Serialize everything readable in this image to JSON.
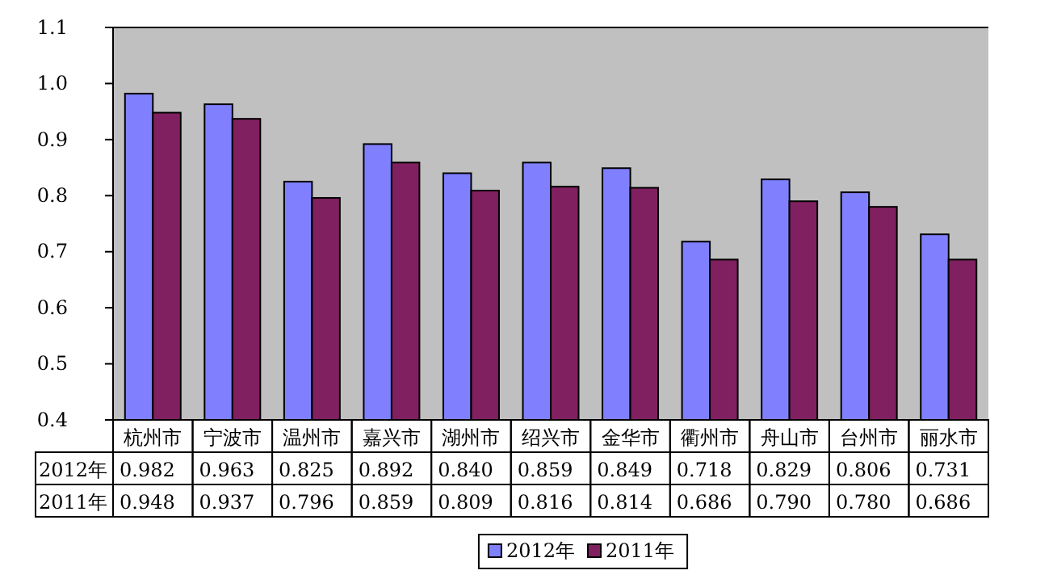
{
  "chart_data": {
    "type": "bar",
    "categories": [
      "杭州市",
      "宁波市",
      "温州市",
      "嘉兴市",
      "湖州市",
      "绍兴市",
      "金华市",
      "衢州市",
      "舟山市",
      "台州市",
      "丽水市"
    ],
    "series": [
      {
        "name": "2012年",
        "color": "#8080ff",
        "values": [
          0.982,
          0.963,
          0.825,
          0.892,
          0.84,
          0.859,
          0.849,
          0.718,
          0.829,
          0.806,
          0.731
        ],
        "value_labels": [
          "0.982",
          "0.963",
          "0.825",
          "0.892",
          "0.840",
          "0.859",
          "0.849",
          "0.718",
          "0.829",
          "0.806",
          "0.731"
        ]
      },
      {
        "name": "2011年",
        "color": "#802060",
        "values": [
          0.948,
          0.937,
          0.796,
          0.859,
          0.809,
          0.816,
          0.814,
          0.686,
          0.79,
          0.78,
          0.686
        ],
        "value_labels": [
          "0.948",
          "0.937",
          "0.796",
          "0.859",
          "0.809",
          "0.816",
          "0.814",
          "0.686",
          "0.790",
          "0.780",
          "0.686"
        ]
      }
    ],
    "ylim": [
      0.4,
      1.1
    ],
    "yticks": [
      {
        "value": 0.4,
        "label": "0.4"
      },
      {
        "value": 0.5,
        "label": "0.5"
      },
      {
        "value": 0.6,
        "label": "0.6"
      },
      {
        "value": 0.7,
        "label": "0.7"
      },
      {
        "value": 0.8,
        "label": "0.8"
      },
      {
        "value": 0.9,
        "label": "0.9"
      },
      {
        "value": 1,
        "label": "1.0"
      },
      {
        "value": 1.1,
        "label": "1.1"
      }
    ],
    "grid": false,
    "legend": "bottom"
  }
}
